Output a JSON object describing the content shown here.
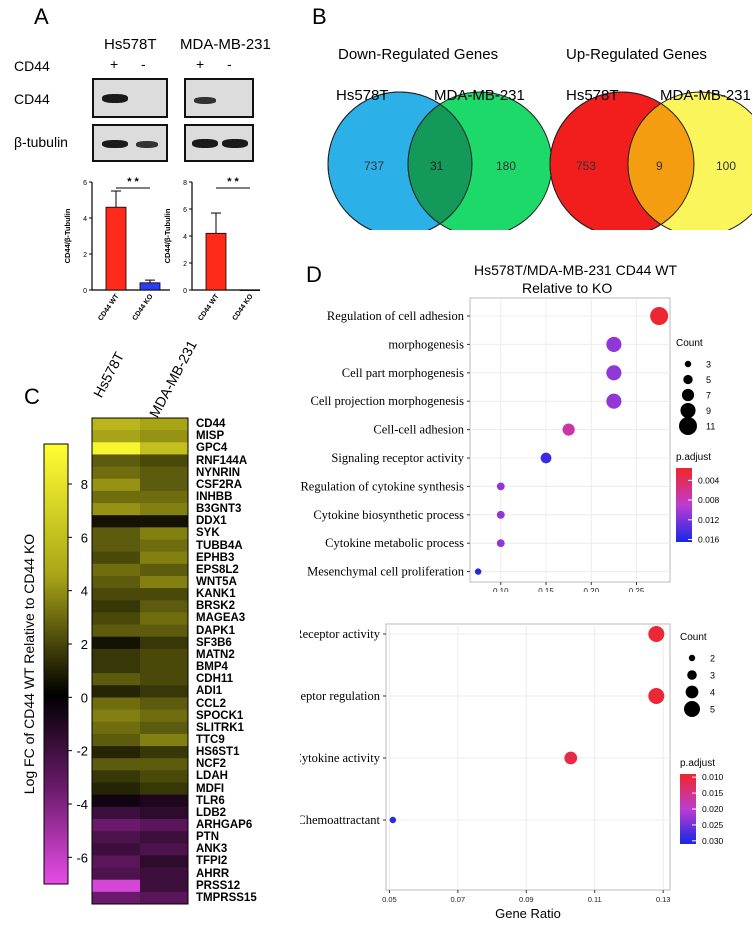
{
  "panelA": {
    "letter": "A",
    "cell_lines": [
      "Hs578T",
      "MDA-MB-231"
    ],
    "cd44_row_label": "CD44",
    "signs": [
      "+",
      "-",
      "+",
      "-"
    ],
    "blot_labels": [
      "CD44",
      "β-tubulin"
    ],
    "significance": "* *",
    "ylabel": "CD44/β-Tubulin",
    "categories": [
      "CD44 WT",
      "CD44 KO"
    ]
  },
  "panelB": {
    "letter": "B",
    "down_title": "Down-Regulated Genes",
    "up_title": "Up-Regulated Genes",
    "set_labels": [
      "Hs578T",
      "MDA-MB-231"
    ],
    "down": {
      "left": "737",
      "overlap": "31",
      "right": "180"
    },
    "up": {
      "left": "753",
      "overlap": "9",
      "right": "100"
    },
    "colors": {
      "down_left": "#2bb0e8",
      "down_right": "#1cd96a",
      "down_overlap": "#139a5a",
      "up_left": "#f21d1d",
      "up_right": "#fbf55c",
      "up_overlap": "#f59d10"
    }
  },
  "panelC": {
    "letter": "C",
    "columns": [
      "Hs578T",
      "MDA-MB-231"
    ],
    "colorbar_label": "Log FC of CD44 WT Relative to CD44 KO",
    "colorbar_ticks": [
      "8",
      "6",
      "4",
      "2",
      "0",
      "-2",
      "-4",
      "-6"
    ],
    "colorbar_range": [
      -7,
      9.5
    ],
    "genes": [
      "CD44",
      "MISP",
      "GPC4",
      "RNF144A",
      "NYNRIN",
      "CSF2RA",
      "INHBB",
      "B3GNT3",
      "DDX1",
      "SYK",
      "TUBB4A",
      "EPHB3",
      "EPS8L2",
      "WNT5A",
      "KANK1",
      "BRSK2",
      "MAGEA3",
      "DAPK1",
      "SF3B6",
      "MATN2",
      "BMP4",
      "CDH11",
      "ADI1",
      "CCL2",
      "SPOCK1",
      "SLITRK1",
      "TTC9",
      "HS6ST1",
      "NCF2",
      "LDAH",
      "MDFI",
      "TLR6",
      "LDB2",
      "ARHGAP6",
      "PTN",
      "ANK3",
      "TFPI2",
      "AHRR",
      "PRSS12",
      "TMPRSS15"
    ],
    "values": [
      [
        5.5,
        4.5
      ],
      [
        4.5,
        4.0
      ],
      [
        9.0,
        6.0
      ],
      [
        2.5,
        2.0
      ],
      [
        3.0,
        2.5
      ],
      [
        4.0,
        2.5
      ],
      [
        3.0,
        3.0
      ],
      [
        4.0,
        3.5
      ],
      [
        0.5,
        0.5
      ],
      [
        2.5,
        3.5
      ],
      [
        2.5,
        3.0
      ],
      [
        2.0,
        3.5
      ],
      [
        3.0,
        2.5
      ],
      [
        2.5,
        3.5
      ],
      [
        2.0,
        2.0
      ],
      [
        1.5,
        2.5
      ],
      [
        2.0,
        3.0
      ],
      [
        2.5,
        2.5
      ],
      [
        0.5,
        1.5
      ],
      [
        1.5,
        2.0
      ],
      [
        1.5,
        2.0
      ],
      [
        2.5,
        2.0
      ],
      [
        1.0,
        1.5
      ],
      [
        3.0,
        2.5
      ],
      [
        3.5,
        3.0
      ],
      [
        3.0,
        2.5
      ],
      [
        2.5,
        3.5
      ],
      [
        1.0,
        1.5
      ],
      [
        2.5,
        2.5
      ],
      [
        1.5,
        2.0
      ],
      [
        1.0,
        1.5
      ],
      [
        -0.5,
        -1.0
      ],
      [
        -2.0,
        -1.5
      ],
      [
        -3.5,
        -3.0
      ],
      [
        -2.5,
        -2.0
      ],
      [
        -2.0,
        -2.5
      ],
      [
        -3.0,
        -1.5
      ],
      [
        -2.5,
        -2.0
      ],
      [
        -6.5,
        -2.0
      ],
      [
        -3.5,
        -3.0
      ]
    ]
  },
  "panelD": {
    "letter": "D",
    "title_line1": "Hs578T/MDA-MB-231 CD44 WT",
    "title_line2": "Relative to KO",
    "xlabel": "Gene Ratio",
    "count_label": "Count",
    "padjust_label": "p.adjust"
  },
  "chart_data": [
    {
      "type": "bar",
      "title": "Hs578T",
      "categories": [
        "CD44 WT",
        "CD44 KO"
      ],
      "values": [
        4.6,
        0.4
      ],
      "errors": [
        0.9,
        0.15
      ],
      "ylabel": "CD44/β-Tubulin",
      "ylim": [
        0,
        6
      ],
      "yticks": [
        "0",
        "2",
        "4",
        "6"
      ],
      "colors": [
        "#ff2a1a",
        "#2a3df0"
      ]
    },
    {
      "type": "bar",
      "title": "MDA-MB-231",
      "categories": [
        "CD44 WT",
        "CD44 KO"
      ],
      "values": [
        4.2,
        0.0
      ],
      "errors": [
        1.5,
        0.0
      ],
      "ylabel": "CD44/β-Tubulin",
      "ylim": [
        0,
        8
      ],
      "yticks": [
        "0",
        "2",
        "4",
        "6",
        "8"
      ],
      "colors": [
        "#ff2a1a",
        "#2a3df0"
      ]
    },
    {
      "type": "scatter",
      "xlabel": "Gene Ratio",
      "xlim": [
        0.066,
        0.287
      ],
      "xticks": [
        "0.10",
        "0.15",
        "0.20",
        "0.25"
      ],
      "xtick_values": [
        0.1,
        0.15,
        0.2,
        0.25
      ],
      "terms": [
        "Regulation of cell adhesion",
        "morphogenesis",
        "Cell part morphogenesis",
        "Cell projection morphogenesis",
        "Cell-cell adhesion",
        "Signaling receptor activity",
        "Regulation of cytokine synthesis",
        "Cytokine biosynthetic process",
        "Cytokine metabolic process",
        "Mesenchymal cell proliferation"
      ],
      "gene_ratio": [
        0.275,
        0.225,
        0.225,
        0.225,
        0.175,
        0.15,
        0.1,
        0.1,
        0.1,
        0.075
      ],
      "count": [
        11,
        9,
        9,
        9,
        7,
        6,
        4,
        4,
        4,
        3
      ],
      "p_adjust": [
        0.002,
        0.011,
        0.011,
        0.011,
        0.007,
        0.015,
        0.011,
        0.011,
        0.011,
        0.016
      ],
      "legend_count": [
        "3",
        "5",
        "7",
        "9",
        "11"
      ],
      "legend_count_values": [
        3,
        5,
        7,
        9,
        11
      ],
      "legend_padjust": [
        "0.004",
        "0.008",
        "0.012",
        "0.016"
      ],
      "padjust_range": [
        0.0015,
        0.0165
      ]
    },
    {
      "type": "scatter",
      "xlabel": "Gene Ratio",
      "xlim": [
        0.049,
        0.132
      ],
      "xticks": [
        "0.05",
        "0.07",
        "0.09",
        "0.11",
        "0.13"
      ],
      "xtick_values": [
        0.05,
        0.07,
        0.09,
        0.11,
        0.13
      ],
      "terms": [
        "Receptor activity",
        "Receptor regulation",
        "Cytokine activity",
        "Chemoattractant"
      ],
      "gene_ratio": [
        0.128,
        0.128,
        0.103,
        0.051
      ],
      "count": [
        5,
        5,
        4,
        2
      ],
      "p_adjust": [
        0.01,
        0.01,
        0.011,
        0.03
      ],
      "legend_count": [
        "2",
        "3",
        "4",
        "5"
      ],
      "legend_count_values": [
        2,
        3,
        4,
        5
      ],
      "legend_padjust": [
        "0.010",
        "0.015",
        "0.020",
        "0.025",
        "0.030"
      ],
      "padjust_range": [
        0.009,
        0.031
      ]
    }
  ]
}
